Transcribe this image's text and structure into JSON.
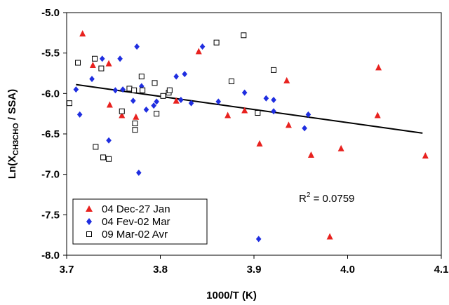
{
  "chart_data": {
    "type": "scatter",
    "xlabel": "1000/T  (K)",
    "ylabel": {
      "prefix": "Ln(X",
      "subscript": "CH3CHO",
      "suffix": " / SSA)"
    },
    "xlim": [
      3.7,
      4.1
    ],
    "ylim": [
      -8.0,
      -5.0
    ],
    "xticks": [
      3.7,
      3.8,
      3.9,
      4.0,
      4.1
    ],
    "yticks": [
      -5.0,
      -5.5,
      -6.0,
      -6.5,
      -7.0,
      -7.5,
      -8.0
    ],
    "xtick_labels": [
      "3.7",
      "3.8",
      "3.9",
      "4.0",
      "4.1"
    ],
    "ytick_labels": [
      "-5.0",
      "-5.5",
      "-6.0",
      "-6.5",
      "-7.0",
      "-7.5",
      "-8.0"
    ],
    "grid": false,
    "legend_position": "bottom-left",
    "series": [
      {
        "name": "04 Dec-27 Jan",
        "marker": "triangle",
        "color": "#e8221f",
        "points": [
          [
            3.717,
            -5.26
          ],
          [
            3.728,
            -5.65
          ],
          [
            3.745,
            -5.63
          ],
          [
            3.746,
            -6.14
          ],
          [
            3.759,
            -6.27
          ],
          [
            3.774,
            -6.29
          ],
          [
            3.817,
            -6.09
          ],
          [
            3.841,
            -5.48
          ],
          [
            3.872,
            -6.27
          ],
          [
            3.89,
            -6.21
          ],
          [
            3.906,
            -6.62
          ],
          [
            3.935,
            -5.84
          ],
          [
            3.937,
            -6.39
          ],
          [
            3.961,
            -6.76
          ],
          [
            3.981,
            -7.77
          ],
          [
            3.993,
            -6.68
          ],
          [
            4.032,
            -6.27
          ],
          [
            4.033,
            -5.68
          ],
          [
            4.083,
            -6.77
          ]
        ]
      },
      {
        "name": "04 Fev-02 Mar",
        "marker": "diamond",
        "color": "#1f2ee0",
        "points": [
          [
            3.71,
            -5.95
          ],
          [
            3.714,
            -6.26
          ],
          [
            3.727,
            -5.82
          ],
          [
            3.738,
            -5.57
          ],
          [
            3.745,
            -6.58
          ],
          [
            3.752,
            -5.96
          ],
          [
            3.757,
            -5.57
          ],
          [
            3.76,
            -5.95
          ],
          [
            3.771,
            -6.09
          ],
          [
            3.775,
            -5.42
          ],
          [
            3.777,
            -6.98
          ],
          [
            3.78,
            -5.91
          ],
          [
            3.785,
            -6.2
          ],
          [
            3.793,
            -6.15
          ],
          [
            3.796,
            -6.1
          ],
          [
            3.81,
            -5.96
          ],
          [
            3.817,
            -5.79
          ],
          [
            3.822,
            -6.08
          ],
          [
            3.826,
            -5.76
          ],
          [
            3.833,
            -6.12
          ],
          [
            3.845,
            -5.42
          ],
          [
            3.862,
            -6.1
          ],
          [
            3.89,
            -5.99
          ],
          [
            3.905,
            -7.8
          ],
          [
            3.913,
            -6.06
          ],
          [
            3.921,
            -6.08
          ],
          [
            3.921,
            -6.22
          ],
          [
            3.954,
            -6.43
          ],
          [
            3.958,
            -6.26
          ]
        ]
      },
      {
        "name": "09 Mar-02 Avr",
        "marker": "square-open",
        "color": "#000000",
        "points": [
          [
            3.703,
            -6.12
          ],
          [
            3.712,
            -5.62
          ],
          [
            3.73,
            -5.57
          ],
          [
            3.731,
            -6.66
          ],
          [
            3.737,
            -5.69
          ],
          [
            3.739,
            -6.79
          ],
          [
            3.745,
            -6.81
          ],
          [
            3.759,
            -6.22
          ],
          [
            3.767,
            -5.94
          ],
          [
            3.772,
            -5.96
          ],
          [
            3.773,
            -6.37
          ],
          [
            3.773,
            -6.45
          ],
          [
            3.78,
            -5.79
          ],
          [
            3.781,
            -5.96
          ],
          [
            3.794,
            -5.87
          ],
          [
            3.796,
            -6.25
          ],
          [
            3.803,
            -6.03
          ],
          [
            3.809,
            -5.99
          ],
          [
            3.81,
            -5.96
          ],
          [
            3.86,
            -5.37
          ],
          [
            3.876,
            -5.85
          ],
          [
            3.889,
            -5.28
          ],
          [
            3.904,
            -6.24
          ],
          [
            3.921,
            -5.71
          ]
        ]
      }
    ],
    "trendline": {
      "type": "linear",
      "x": [
        3.71,
        4.08
      ],
      "y": [
        -5.89,
        -6.49
      ],
      "color": "#000000"
    },
    "annotation": {
      "text_base": "R",
      "text_sup": "2",
      "text_rest": " = 0.0759"
    }
  }
}
